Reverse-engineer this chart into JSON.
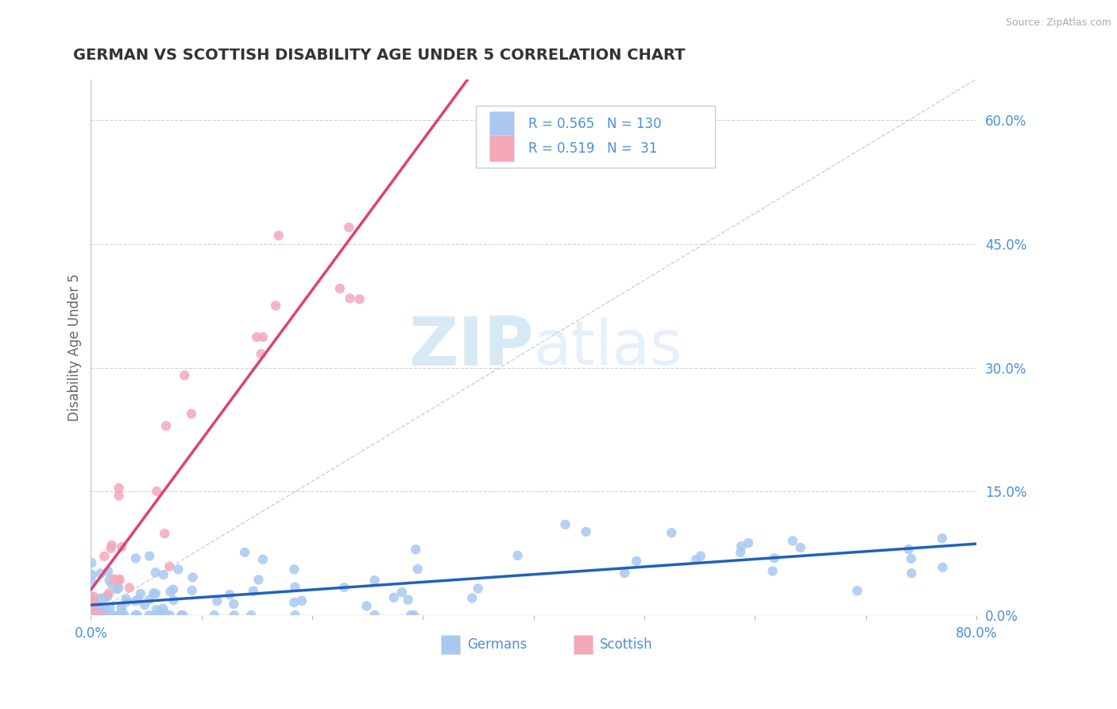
{
  "title": "GERMAN VS SCOTTISH DISABILITY AGE UNDER 5 CORRELATION CHART",
  "source_text": "Source: ZipAtlas.com",
  "ylabel": "Disability Age Under 5",
  "xlim": [
    0.0,
    0.8
  ],
  "ylim": [
    0.0,
    0.65
  ],
  "xtick_positions": [
    0.0,
    0.1,
    0.2,
    0.3,
    0.4,
    0.5,
    0.6,
    0.7,
    0.8
  ],
  "xticklabels": [
    "0.0%",
    "",
    "",
    "",
    "",
    "",
    "",
    "",
    "80.0%"
  ],
  "yticks_right": [
    0.0,
    0.15,
    0.3,
    0.45,
    0.6
  ],
  "yticklabels_right": [
    "0.0%",
    "15.0%",
    "30.0%",
    "45.0%",
    "60.0%"
  ],
  "german_color": "#a8c8f0",
  "scottish_color": "#f4a8b8",
  "german_line_color": "#2060c0",
  "scottish_line_color": "#e04070",
  "ref_line_color": "#c8c8c8",
  "R_german": 0.565,
  "N_german": 130,
  "R_scottish": 0.519,
  "N_scottish": 31,
  "watermark_zip": "ZIP",
  "watermark_atlas": "atlas",
  "background_color": "#ffffff",
  "grid_color": "#cccccc",
  "title_color": "#333333",
  "axis_label_color": "#666666",
  "tick_label_color": "#4a90d9",
  "legend_color": "#4a90d9"
}
